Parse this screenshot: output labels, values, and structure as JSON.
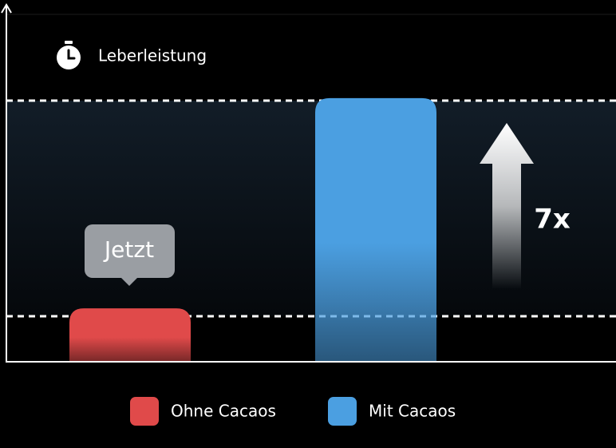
{
  "chart_data": {
    "type": "bar",
    "title": "Leberleistung",
    "categories": [
      null
    ],
    "series": [
      {
        "name": "Ohne Cacaos",
        "color": "#e04a4a",
        "values": [
          20
        ]
      },
      {
        "name": "Mit Cacaos",
        "color": "#4b9fe1",
        "values": [
          100
        ]
      }
    ],
    "ylim": [
      0,
      110
    ],
    "annotations": [
      "Jetzt",
      "7x"
    ]
  }
}
